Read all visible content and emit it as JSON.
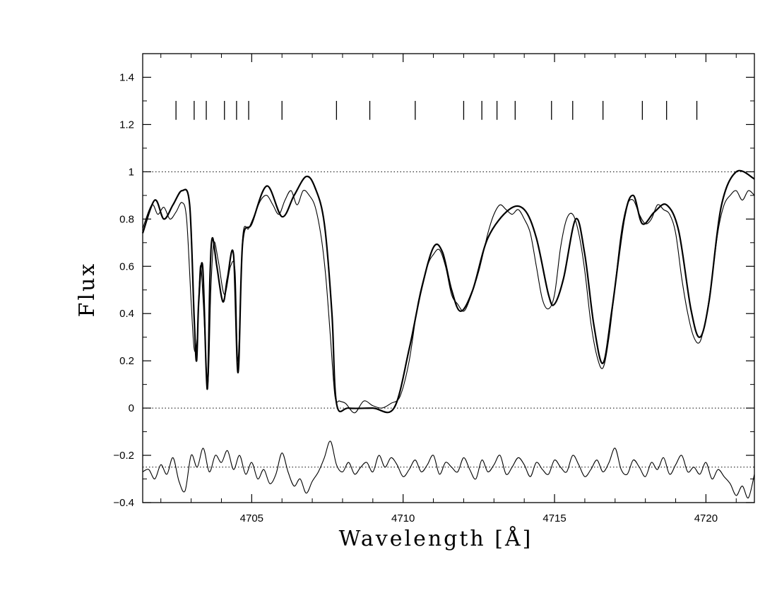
{
  "chart_data": {
    "type": "line",
    "xlabel": "Wavelength [Å]",
    "ylabel": "Flux",
    "xlim": [
      4701.4,
      4721.6
    ],
    "ylim": [
      -0.4,
      1.5
    ],
    "x_ticks": [
      4705,
      4710,
      4715,
      4720
    ],
    "x_tick_labels": [
      "4705",
      "4710",
      "4715",
      "4720"
    ],
    "y_ticks": [
      -0.4,
      -0.2,
      0,
      0.2,
      0.4,
      0.6,
      0.8,
      1,
      1.2,
      1.4
    ],
    "y_tick_labels": [
      "−0.4",
      "−0.2",
      "0",
      "0.2",
      "0.4",
      "0.6",
      "0.8",
      "1",
      "1.2",
      "1.4"
    ],
    "reference_lines": [
      {
        "y": 1.0,
        "style": "dotted"
      },
      {
        "y": 0.0,
        "style": "dotted"
      },
      {
        "y": -0.25,
        "style": "dotted"
      }
    ],
    "line_markers": {
      "x": [
        4702.5,
        4703.1,
        4703.5,
        4704.1,
        4704.5,
        4704.9,
        4706.0,
        4707.8,
        4708.9,
        4710.4,
        4712.0,
        4712.6,
        4713.1,
        4713.7,
        4714.9,
        4715.6,
        4716.6,
        4717.9,
        4718.7,
        4719.7
      ],
      "y_range": [
        1.22,
        1.3
      ]
    },
    "series": [
      {
        "style": "thick",
        "x": [
          4701.4,
          4701.8,
          4702.1,
          4702.4,
          4702.7,
          4702.95,
          4703.1,
          4703.18,
          4703.25,
          4703.38,
          4703.53,
          4703.62,
          4703.7,
          4703.85,
          4704.05,
          4704.2,
          4704.4,
          4704.55,
          4704.7,
          4705.0,
          4705.5,
          4706.0,
          4706.4,
          4706.8,
          4707.1,
          4707.4,
          4707.65,
          4707.8,
          4708.2,
          4709.0,
          4709.7,
          4710.2,
          4710.6,
          4711.0,
          4711.3,
          4711.6,
          4711.9,
          4712.3,
          4712.8,
          4713.5,
          4714.0,
          4714.4,
          4714.8,
          4715.0,
          4715.3,
          4715.7,
          4716.0,
          4716.3,
          4716.6,
          4716.9,
          4717.3,
          4717.6,
          4717.9,
          4718.3,
          4718.7,
          4719.1,
          4719.5,
          4719.8,
          4720.1,
          4720.5,
          4721.0,
          4721.6
        ],
        "y": [
          0.74,
          0.88,
          0.8,
          0.86,
          0.92,
          0.86,
          0.38,
          0.2,
          0.45,
          0.6,
          0.08,
          0.55,
          0.72,
          0.6,
          0.45,
          0.55,
          0.65,
          0.15,
          0.7,
          0.78,
          0.94,
          0.81,
          0.9,
          0.98,
          0.93,
          0.78,
          0.4,
          0.02,
          0.0,
          0.0,
          0.0,
          0.25,
          0.5,
          0.68,
          0.66,
          0.5,
          0.41,
          0.5,
          0.72,
          0.84,
          0.84,
          0.72,
          0.48,
          0.44,
          0.55,
          0.8,
          0.65,
          0.35,
          0.19,
          0.42,
          0.8,
          0.9,
          0.78,
          0.83,
          0.86,
          0.75,
          0.42,
          0.3,
          0.45,
          0.85,
          1.0,
          0.97
        ]
      },
      {
        "style": "thin",
        "x": [
          4701.4,
          4701.7,
          4701.9,
          4702.1,
          4702.3,
          4702.5,
          4702.7,
          4702.85,
          4703.0,
          4703.1,
          4703.2,
          4703.3,
          4703.4,
          4703.55,
          4703.65,
          4703.75,
          4703.9,
          4704.1,
          4704.3,
          4704.45,
          4704.55,
          4704.7,
          4704.9,
          4705.1,
          4705.3,
          4705.5,
          4705.7,
          4705.9,
          4706.1,
          4706.3,
          4706.5,
          4706.7,
          4706.9,
          4707.1,
          4707.3,
          4707.45,
          4707.6,
          4707.75,
          4707.9,
          4708.1,
          4708.4,
          4708.7,
          4709.0,
          4709.3,
          4709.6,
          4709.9,
          4710.2,
          4710.5,
          4710.8,
          4711.0,
          4711.2,
          4711.4,
          4711.6,
          4711.8,
          4712.0,
          4712.2,
          4712.5,
          4712.8,
          4713.0,
          4713.2,
          4713.4,
          4713.6,
          4713.8,
          4714.0,
          4714.2,
          4714.4,
          4714.6,
          4714.8,
          4715.0,
          4715.2,
          4715.4,
          4715.6,
          4715.8,
          4716.0,
          4716.2,
          4716.4,
          4716.6,
          4716.8,
          4717.0,
          4717.2,
          4717.4,
          4717.6,
          4717.8,
          4718.0,
          4718.2,
          4718.4,
          4718.6,
          4718.8,
          4719.0,
          4719.2,
          4719.4,
          4719.6,
          4719.8,
          4720.0,
          4720.2,
          4720.4,
          4720.6,
          4720.8,
          4721.0,
          4721.2,
          4721.4,
          4721.6
        ],
        "y": [
          0.76,
          0.86,
          0.82,
          0.85,
          0.8,
          0.83,
          0.87,
          0.8,
          0.45,
          0.25,
          0.3,
          0.6,
          0.45,
          0.1,
          0.5,
          0.7,
          0.62,
          0.48,
          0.6,
          0.58,
          0.2,
          0.72,
          0.76,
          0.82,
          0.88,
          0.9,
          0.86,
          0.82,
          0.88,
          0.92,
          0.86,
          0.92,
          0.9,
          0.85,
          0.72,
          0.55,
          0.3,
          0.05,
          0.03,
          0.02,
          -0.02,
          0.03,
          0.01,
          0.0,
          0.02,
          0.05,
          0.2,
          0.45,
          0.6,
          0.65,
          0.67,
          0.6,
          0.48,
          0.44,
          0.41,
          0.46,
          0.58,
          0.74,
          0.82,
          0.86,
          0.84,
          0.82,
          0.84,
          0.8,
          0.74,
          0.6,
          0.46,
          0.42,
          0.48,
          0.68,
          0.8,
          0.82,
          0.74,
          0.58,
          0.36,
          0.22,
          0.17,
          0.3,
          0.52,
          0.74,
          0.86,
          0.88,
          0.82,
          0.78,
          0.8,
          0.86,
          0.84,
          0.82,
          0.74,
          0.55,
          0.4,
          0.3,
          0.28,
          0.38,
          0.55,
          0.75,
          0.86,
          0.9,
          0.92,
          0.88,
          0.92,
          0.9
        ]
      },
      {
        "style": "residual",
        "x": [
          4701.4,
          4701.6,
          4701.8,
          4702.0,
          4702.2,
          4702.4,
          4702.6,
          4702.8,
          4703.0,
          4703.2,
          4703.4,
          4703.6,
          4703.8,
          4704.0,
          4704.2,
          4704.4,
          4704.6,
          4704.8,
          4705.0,
          4705.2,
          4705.4,
          4705.6,
          4705.8,
          4706.0,
          4706.2,
          4706.4,
          4706.6,
          4706.8,
          4707.0,
          4707.2,
          4707.4,
          4707.6,
          4707.8,
          4708.0,
          4708.2,
          4708.4,
          4708.6,
          4708.8,
          4709.0,
          4709.2,
          4709.4,
          4709.6,
          4709.8,
          4710.0,
          4710.2,
          4710.4,
          4710.6,
          4710.8,
          4711.0,
          4711.2,
          4711.4,
          4711.6,
          4711.8,
          4712.0,
          4712.2,
          4712.4,
          4712.6,
          4712.8,
          4713.0,
          4713.2,
          4713.4,
          4713.6,
          4713.8,
          4714.0,
          4714.2,
          4714.4,
          4714.6,
          4714.8,
          4715.0,
          4715.2,
          4715.4,
          4715.6,
          4715.8,
          4716.0,
          4716.2,
          4716.4,
          4716.6,
          4716.8,
          4717.0,
          4717.2,
          4717.4,
          4717.6,
          4717.8,
          4718.0,
          4718.2,
          4718.4,
          4718.6,
          4718.8,
          4719.0,
          4719.2,
          4719.4,
          4719.6,
          4719.8,
          4720.0,
          4720.2,
          4720.4,
          4720.6,
          4720.8,
          4721.0,
          4721.2,
          4721.4,
          4721.6
        ],
        "y": [
          -0.27,
          -0.26,
          -0.3,
          -0.24,
          -0.28,
          -0.21,
          -0.31,
          -0.35,
          -0.2,
          -0.25,
          -0.17,
          -0.27,
          -0.2,
          -0.23,
          -0.18,
          -0.26,
          -0.2,
          -0.28,
          -0.23,
          -0.3,
          -0.26,
          -0.32,
          -0.28,
          -0.19,
          -0.27,
          -0.33,
          -0.3,
          -0.36,
          -0.31,
          -0.27,
          -0.21,
          -0.14,
          -0.24,
          -0.27,
          -0.23,
          -0.28,
          -0.25,
          -0.23,
          -0.27,
          -0.2,
          -0.25,
          -0.21,
          -0.24,
          -0.29,
          -0.26,
          -0.22,
          -0.27,
          -0.24,
          -0.2,
          -0.28,
          -0.23,
          -0.25,
          -0.27,
          -0.21,
          -0.26,
          -0.3,
          -0.22,
          -0.27,
          -0.24,
          -0.2,
          -0.28,
          -0.25,
          -0.21,
          -0.24,
          -0.29,
          -0.23,
          -0.26,
          -0.28,
          -0.22,
          -0.25,
          -0.27,
          -0.2,
          -0.24,
          -0.29,
          -0.26,
          -0.22,
          -0.27,
          -0.23,
          -0.17,
          -0.26,
          -0.28,
          -0.22,
          -0.25,
          -0.29,
          -0.23,
          -0.26,
          -0.21,
          -0.28,
          -0.24,
          -0.2,
          -0.27,
          -0.25,
          -0.28,
          -0.23,
          -0.3,
          -0.26,
          -0.29,
          -0.32,
          -0.37,
          -0.33,
          -0.38,
          -0.28
        ]
      }
    ]
  }
}
